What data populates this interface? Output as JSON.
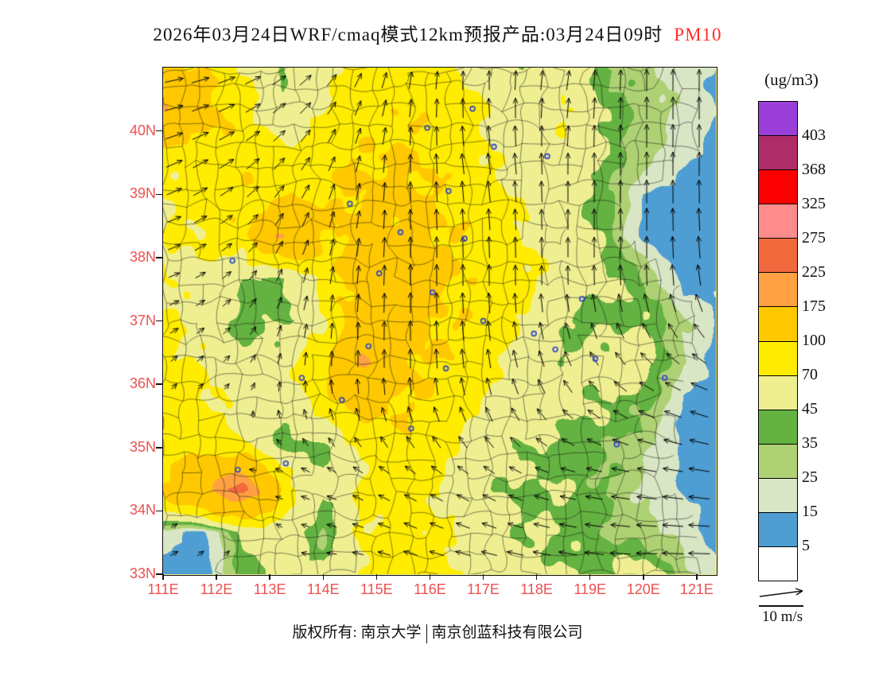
{
  "title": {
    "main": "2026年03月24日WRF/cmaq模式12km预报产品:03月24日09时",
    "pollutant": "PM10"
  },
  "legend": {
    "title": "(ug/m3)",
    "labels": [
      "403",
      "368",
      "325",
      "275",
      "225",
      "175",
      "100",
      "70",
      "45",
      "35",
      "25",
      "15",
      "5"
    ],
    "colors": [
      "#9A40D8",
      "#AE2D68",
      "#FA0000",
      "#FF8C8C",
      "#F2693E",
      "#FFA143",
      "#FFC800",
      "#FFEC00",
      "#EFEF92",
      "#64B241",
      "#AED173",
      "#D9E6C5",
      "#4F9ED3",
      "#FFFFFF"
    ]
  },
  "axes": {
    "lat_labels": [
      {
        "text": "40N",
        "value": 40
      },
      {
        "text": "39N",
        "value": 39
      },
      {
        "text": "38N",
        "value": 38
      },
      {
        "text": "37N",
        "value": 37
      },
      {
        "text": "36N",
        "value": 36
      },
      {
        "text": "35N",
        "value": 35
      },
      {
        "text": "34N",
        "value": 34
      },
      {
        "text": "33N",
        "value": 33
      }
    ],
    "lon_labels": [
      {
        "text": "111E",
        "value": 111
      },
      {
        "text": "112E",
        "value": 112
      },
      {
        "text": "113E",
        "value": 113
      },
      {
        "text": "114E",
        "value": 114
      },
      {
        "text": "115E",
        "value": 115
      },
      {
        "text": "116E",
        "value": 116
      },
      {
        "text": "117E",
        "value": 117
      },
      {
        "text": "118E",
        "value": 118
      },
      {
        "text": "119E",
        "value": 119
      },
      {
        "text": "120E",
        "value": 120
      },
      {
        "text": "121E",
        "value": 121
      }
    ],
    "label_color": "#EE5050"
  },
  "wind_scale": {
    "label": "10 m/s"
  },
  "copyright": {
    "prefix": "版权所有: 南京大学",
    "suffix": "南京创蓝科技有限公司"
  },
  "chart_data": {
    "type": "heatmap",
    "subtype": "filled-contour-forecast-map",
    "units": "ug/m3",
    "lon_range": [
      111,
      121.36
    ],
    "lat_range": [
      33,
      41.0
    ],
    "levels": [
      5,
      15,
      25,
      35,
      45,
      70,
      100,
      175,
      225,
      275,
      325,
      368,
      403
    ],
    "colors_ascending": [
      "#FFFFFF",
      "#4F9ED3",
      "#D9E6C5",
      "#AED173",
      "#64B241",
      "#EFEF92",
      "#FFEC00",
      "#FFC800",
      "#FFA143",
      "#F2693E",
      "#FF8C8C",
      "#FA0000",
      "#AE2D68",
      "#9A40D8"
    ],
    "grid": {
      "lons": [
        111,
        111.75,
        112.5,
        113.25,
        114,
        114.75,
        115.5,
        116.25,
        117,
        117.75,
        118.5,
        119.25,
        120,
        120.75,
        121.5
      ],
      "lats": [
        41,
        40.33,
        39.67,
        39,
        38.33,
        37.67,
        37,
        36.33,
        35.67,
        35,
        34.33,
        33.67,
        33
      ],
      "pm10": [
        [
          110,
          95,
          70,
          45,
          65,
          80,
          85,
          80,
          60,
          45,
          60,
          35,
          28,
          20,
          14
        ],
        [
          190,
          120,
          80,
          48,
          70,
          85,
          95,
          88,
          70,
          50,
          72,
          45,
          30,
          22,
          12
        ],
        [
          80,
          88,
          92,
          75,
          92,
          96,
          102,
          92,
          72,
          52,
          62,
          46,
          30,
          18,
          10
        ],
        [
          72,
          82,
          95,
          88,
          96,
          106,
          112,
          96,
          82,
          66,
          52,
          40,
          16,
          10,
          9
        ],
        [
          66,
          76,
          90,
          175,
          100,
          112,
          116,
          102,
          86,
          70,
          56,
          42,
          12,
          8,
          12
        ],
        [
          70,
          60,
          44,
          42,
          82,
          116,
          120,
          106,
          90,
          76,
          60,
          50,
          36,
          10,
          14
        ],
        [
          76,
          55,
          40,
          42,
          62,
          140,
          118,
          100,
          86,
          70,
          45,
          40,
          46,
          26,
          12
        ],
        [
          82,
          70,
          50,
          60,
          92,
          185,
          112,
          95,
          80,
          60,
          46,
          52,
          56,
          24,
          10
        ],
        [
          86,
          76,
          60,
          46,
          86,
          112,
          100,
          90,
          70,
          56,
          50,
          46,
          38,
          14,
          8
        ],
        [
          80,
          90,
          72,
          42,
          40,
          72,
          92,
          76,
          56,
          46,
          40,
          36,
          28,
          12,
          8
        ],
        [
          110,
          170,
          240,
          92,
          46,
          76,
          86,
          70,
          50,
          42,
          46,
          36,
          24,
          14,
          10
        ],
        [
          22,
          12,
          48,
          62,
          32,
          72,
          82,
          72,
          56,
          46,
          42,
          36,
          30,
          20,
          10
        ],
        [
          10,
          8,
          38,
          56,
          46,
          76,
          86,
          76,
          60,
          50,
          46,
          42,
          55,
          30,
          12
        ]
      ]
    },
    "wind": {
      "reference_speed_mps": 10,
      "lons": [
        111,
        112.5,
        114,
        115.5,
        117,
        118.5,
        120,
        121.5
      ],
      "lats": [
        41,
        39.4,
        37.8,
        36.2,
        34.6,
        33
      ],
      "u": [
        [
          6,
          5,
          3,
          1,
          0,
          1,
          0,
          0
        ],
        [
          5,
          4,
          2,
          0,
          -1,
          0,
          0,
          0
        ],
        [
          3,
          2,
          1,
          0,
          0,
          0,
          0,
          -1
        ],
        [
          1,
          1,
          0,
          0,
          -1,
          -2,
          -4,
          -5
        ],
        [
          0,
          -1,
          -2,
          -3,
          -3,
          -4,
          -6,
          -7
        ],
        [
          2,
          1,
          -2,
          -4,
          -5,
          -6,
          -7,
          -7
        ]
      ],
      "v": [
        [
          1,
          2,
          3,
          5,
          6,
          6,
          7,
          7
        ],
        [
          2,
          3,
          4,
          6,
          7,
          7,
          8,
          8
        ],
        [
          1,
          2,
          5,
          7,
          7,
          6,
          7,
          7
        ],
        [
          1,
          1,
          4,
          6,
          6,
          4,
          3,
          2
        ],
        [
          0,
          0,
          1,
          2,
          2,
          1,
          1,
          1
        ],
        [
          1,
          1,
          0,
          1,
          1,
          1,
          0,
          0
        ]
      ]
    },
    "stations": [
      [
        115.95,
        40.05
      ],
      [
        116.8,
        40.35
      ],
      [
        117.2,
        39.75
      ],
      [
        118.2,
        39.6
      ],
      [
        116.35,
        39.05
      ],
      [
        114.5,
        38.85
      ],
      [
        112.3,
        37.95
      ],
      [
        115.45,
        38.4
      ],
      [
        116.65,
        38.3
      ],
      [
        115.05,
        37.75
      ],
      [
        116.05,
        37.45
      ],
      [
        117.0,
        37.0
      ],
      [
        117.95,
        36.8
      ],
      [
        118.35,
        36.55
      ],
      [
        119.1,
        36.4
      ],
      [
        120.4,
        36.1
      ],
      [
        114.85,
        36.6
      ],
      [
        116.3,
        36.25
      ],
      [
        113.6,
        36.1
      ],
      [
        114.35,
        35.75
      ],
      [
        115.65,
        35.3
      ],
      [
        119.5,
        35.05
      ],
      [
        113.3,
        34.75
      ],
      [
        112.4,
        34.65
      ],
      [
        118.85,
        37.35
      ]
    ]
  }
}
